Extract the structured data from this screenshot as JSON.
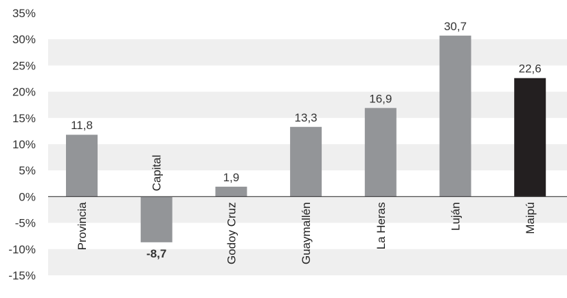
{
  "chart_data": {
    "type": "bar",
    "categories": [
      "Provincia",
      "Capital",
      "Godoy Cruz",
      "Guaymallén",
      "La Heras",
      "Luján",
      "Maipú"
    ],
    "values": [
      11.8,
      -8.7,
      1.9,
      13.3,
      16.9,
      30.7,
      22.6
    ],
    "value_labels": [
      "11,8",
      "-8,7",
      "1,9",
      "13,3",
      "16,9",
      "30,7",
      "22,6"
    ],
    "bold_labels": [
      false,
      true,
      false,
      false,
      false,
      false,
      false
    ],
    "bar_colors": [
      "#939598",
      "#939598",
      "#939598",
      "#939598",
      "#939598",
      "#939598",
      "#231f20"
    ],
    "y_ticks": [
      35,
      30,
      25,
      20,
      15,
      10,
      5,
      0,
      -5,
      -10,
      -15
    ],
    "y_tick_labels": [
      "35%",
      "30%",
      "25%",
      "20%",
      "15%",
      "10%",
      "5%",
      "0%",
      "-5%",
      "-10%",
      "-15%"
    ],
    "ylim": [
      -15,
      35
    ],
    "title": "",
    "xlabel": "",
    "ylabel": "",
    "grid": "alternating horizontal bands",
    "band_color": "#efefef"
  }
}
